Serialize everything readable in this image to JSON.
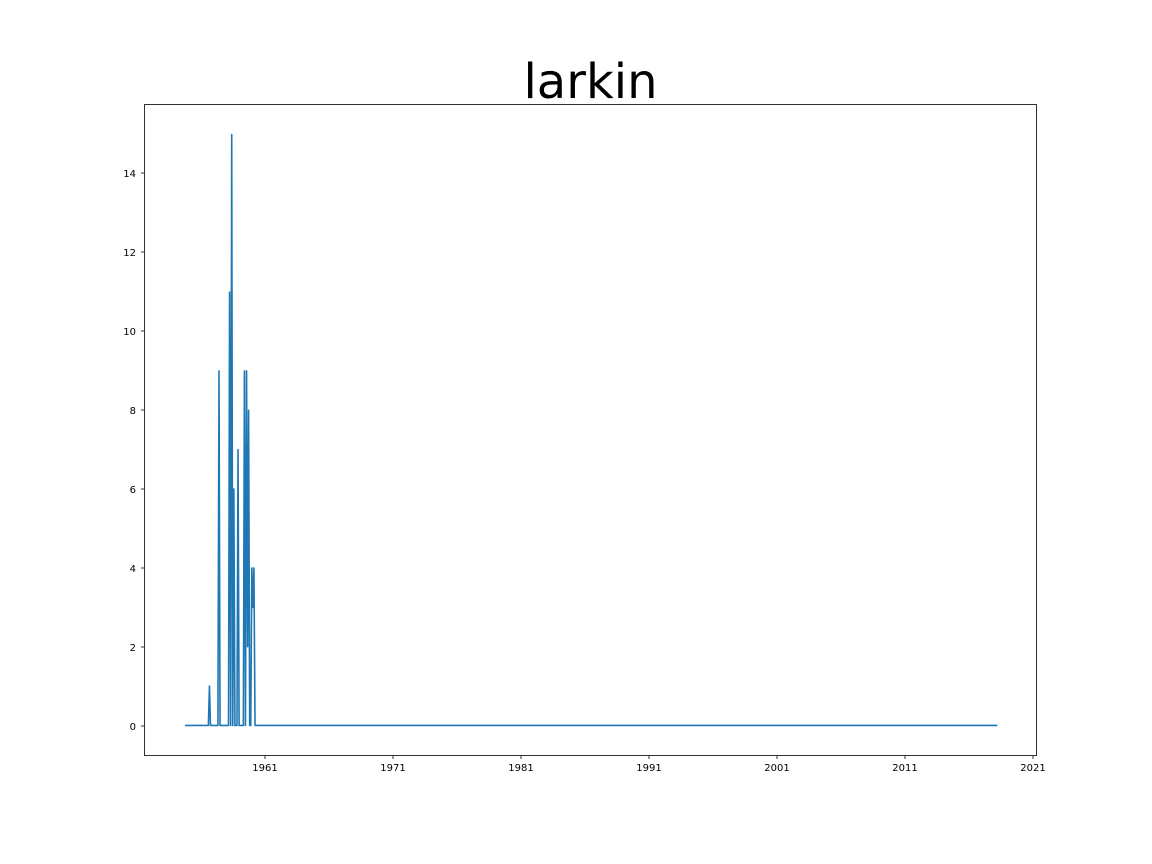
{
  "chart_data": {
    "type": "line",
    "title": "larkin",
    "xlabel": "",
    "ylabel": "",
    "x_tick_labels": [
      "1961",
      "1971",
      "1981",
      "1991",
      "2001",
      "2011",
      "2021"
    ],
    "y_tick_labels": [
      "0",
      "2",
      "4",
      "6",
      "8",
      "10",
      "12",
      "14"
    ],
    "y_ticks": [
      0,
      2,
      4,
      6,
      8,
      10,
      12,
      14
    ],
    "xlim": [
      "1951-01-08",
      "2021-01-15"
    ],
    "ylim": [
      -0.75,
      15.75
    ],
    "grid": false,
    "color": "#1f77b4",
    "series": [
      {
        "x": [
          "1954-03-01",
          "1956-01-01",
          "1956-02-01",
          "1956-03-01",
          "1956-04-01",
          "1956-10-01",
          "1956-11-01",
          "1956-12-01",
          "1957-01-01",
          "1957-02-01",
          "1957-08-01",
          "1957-09-01",
          "1957-10-01",
          "1957-11-01",
          "1957-12-01",
          "1958-01-01",
          "1958-02-01",
          "1958-03-01",
          "1958-04-01",
          "1958-05-01",
          "1958-06-01",
          "1958-07-01",
          "1958-08-01",
          "1958-09-01",
          "1958-10-01",
          "1958-11-01",
          "1958-12-01",
          "1959-01-01",
          "1959-02-01",
          "1959-03-01",
          "1959-04-01",
          "1959-05-01",
          "1959-06-01",
          "1959-07-01",
          "1959-08-01",
          "1959-09-01",
          "1959-10-01",
          "1959-11-01",
          "1959-12-01",
          "1960-01-01",
          "1960-02-01",
          "1960-03-01",
          "1960-04-01",
          "2018-01-01"
        ],
        "values": [
          0,
          0,
          1,
          0,
          0,
          0,
          9,
          0,
          0,
          0,
          0,
          11,
          0,
          15,
          0,
          6,
          0,
          0,
          0,
          7,
          0,
          0,
          0,
          0,
          0,
          9,
          0,
          9,
          2,
          8,
          0,
          0,
          4,
          3,
          4,
          0,
          0,
          0,
          0,
          0,
          0,
          0,
          0,
          0
        ]
      }
    ]
  }
}
